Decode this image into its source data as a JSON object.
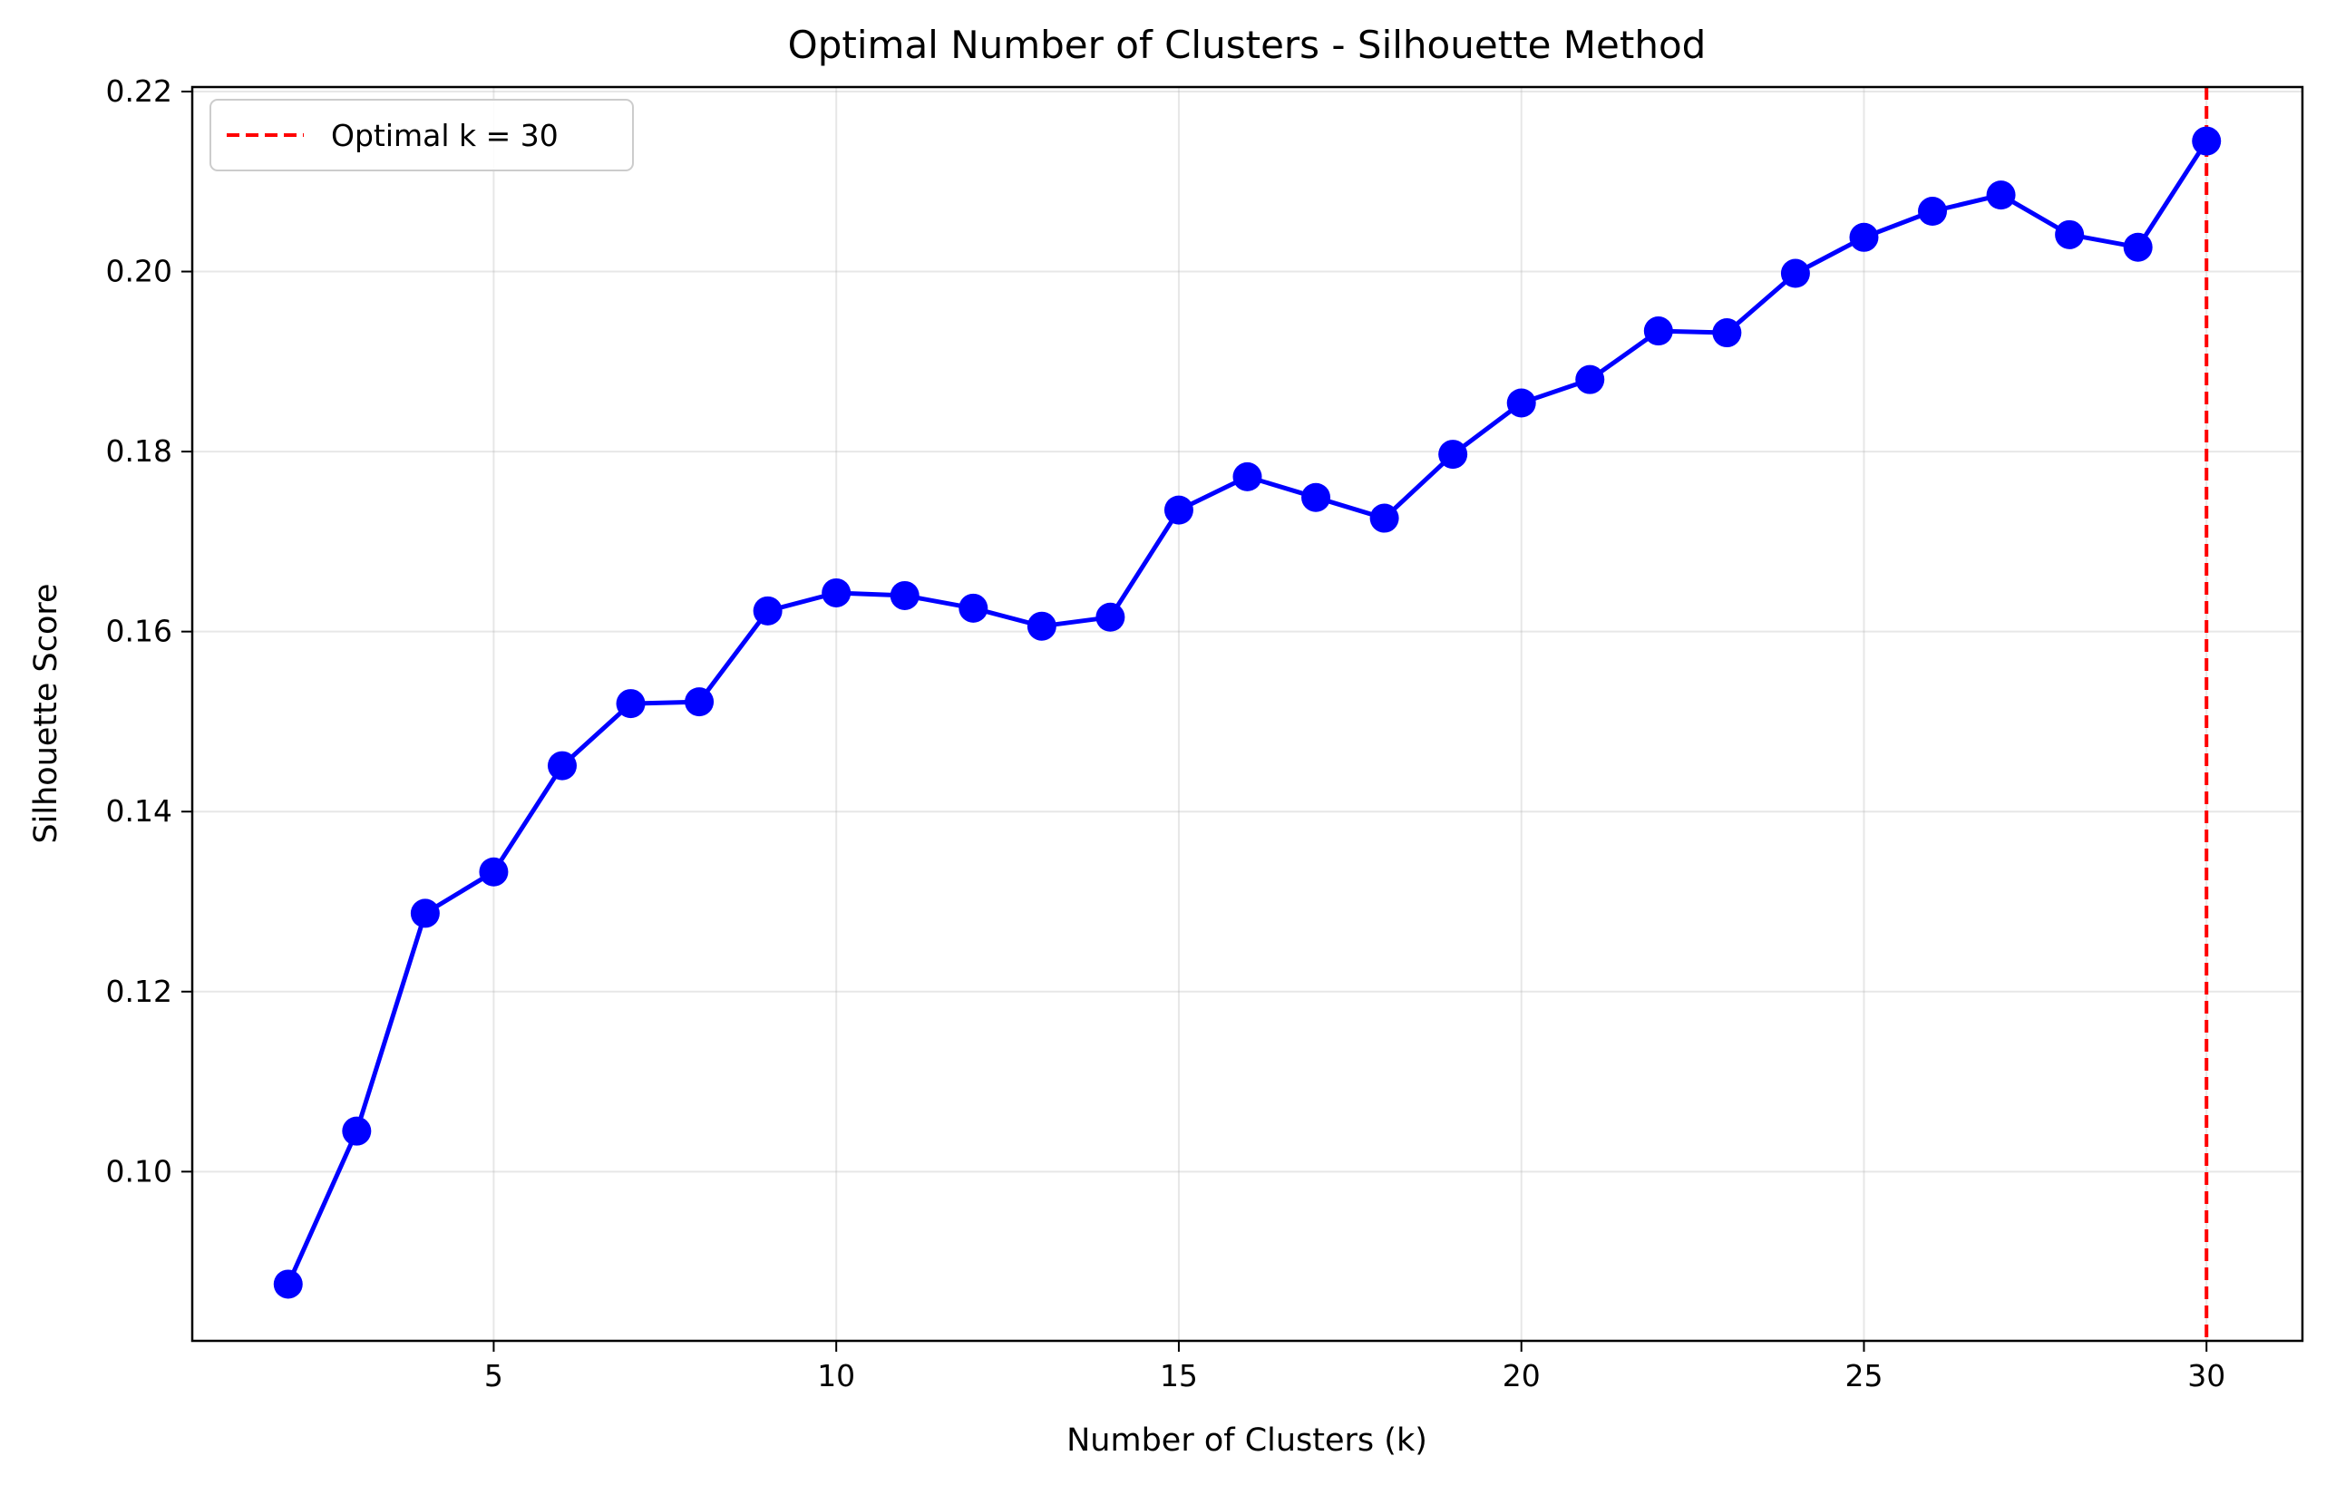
{
  "chart_data": {
    "type": "line",
    "title": "Optimal Number of Clusters - Silhouette Method",
    "xlabel": "Number of Clusters (k)",
    "ylabel": "Silhouette Score",
    "xlim": [
      0.6,
      31.4
    ],
    "ylim": [
      0.0812,
      0.2205
    ],
    "xticks": [
      5,
      10,
      15,
      20,
      25,
      30
    ],
    "xtick_labels": [
      "5",
      "10",
      "15",
      "20",
      "25",
      "30"
    ],
    "yticks": [
      0.1,
      0.12,
      0.14,
      0.16,
      0.18,
      0.2,
      0.22
    ],
    "ytick_labels": [
      "0.10",
      "0.12",
      "0.14",
      "0.16",
      "0.18",
      "0.20",
      "0.22"
    ],
    "grid": true,
    "legend_position": "top-left",
    "series": [
      {
        "color": "#0000ff",
        "marker": "circle",
        "x": [
          2,
          3,
          4,
          5,
          6,
          7,
          8,
          9,
          10,
          11,
          12,
          13,
          14,
          15,
          16,
          17,
          18,
          19,
          20,
          21,
          22,
          23,
          24,
          25,
          26,
          27,
          28,
          29,
          30
        ],
        "y": [
          0.0875,
          0.1045,
          0.1287,
          0.1333,
          0.1451,
          0.152,
          0.1522,
          0.1623,
          0.1643,
          0.164,
          0.1626,
          0.1606,
          0.1616,
          0.1735,
          0.1772,
          0.1749,
          0.1726,
          0.1797,
          0.1854,
          0.188,
          0.1934,
          0.1932,
          0.1998,
          0.2038,
          0.2067,
          0.2085,
          0.2041,
          0.2027,
          0.2145
        ]
      }
    ],
    "reference_line": {
      "orientation": "vertical",
      "x": 30,
      "color": "#ff0000",
      "style": "dashed",
      "label": "Optimal k = 30"
    }
  }
}
